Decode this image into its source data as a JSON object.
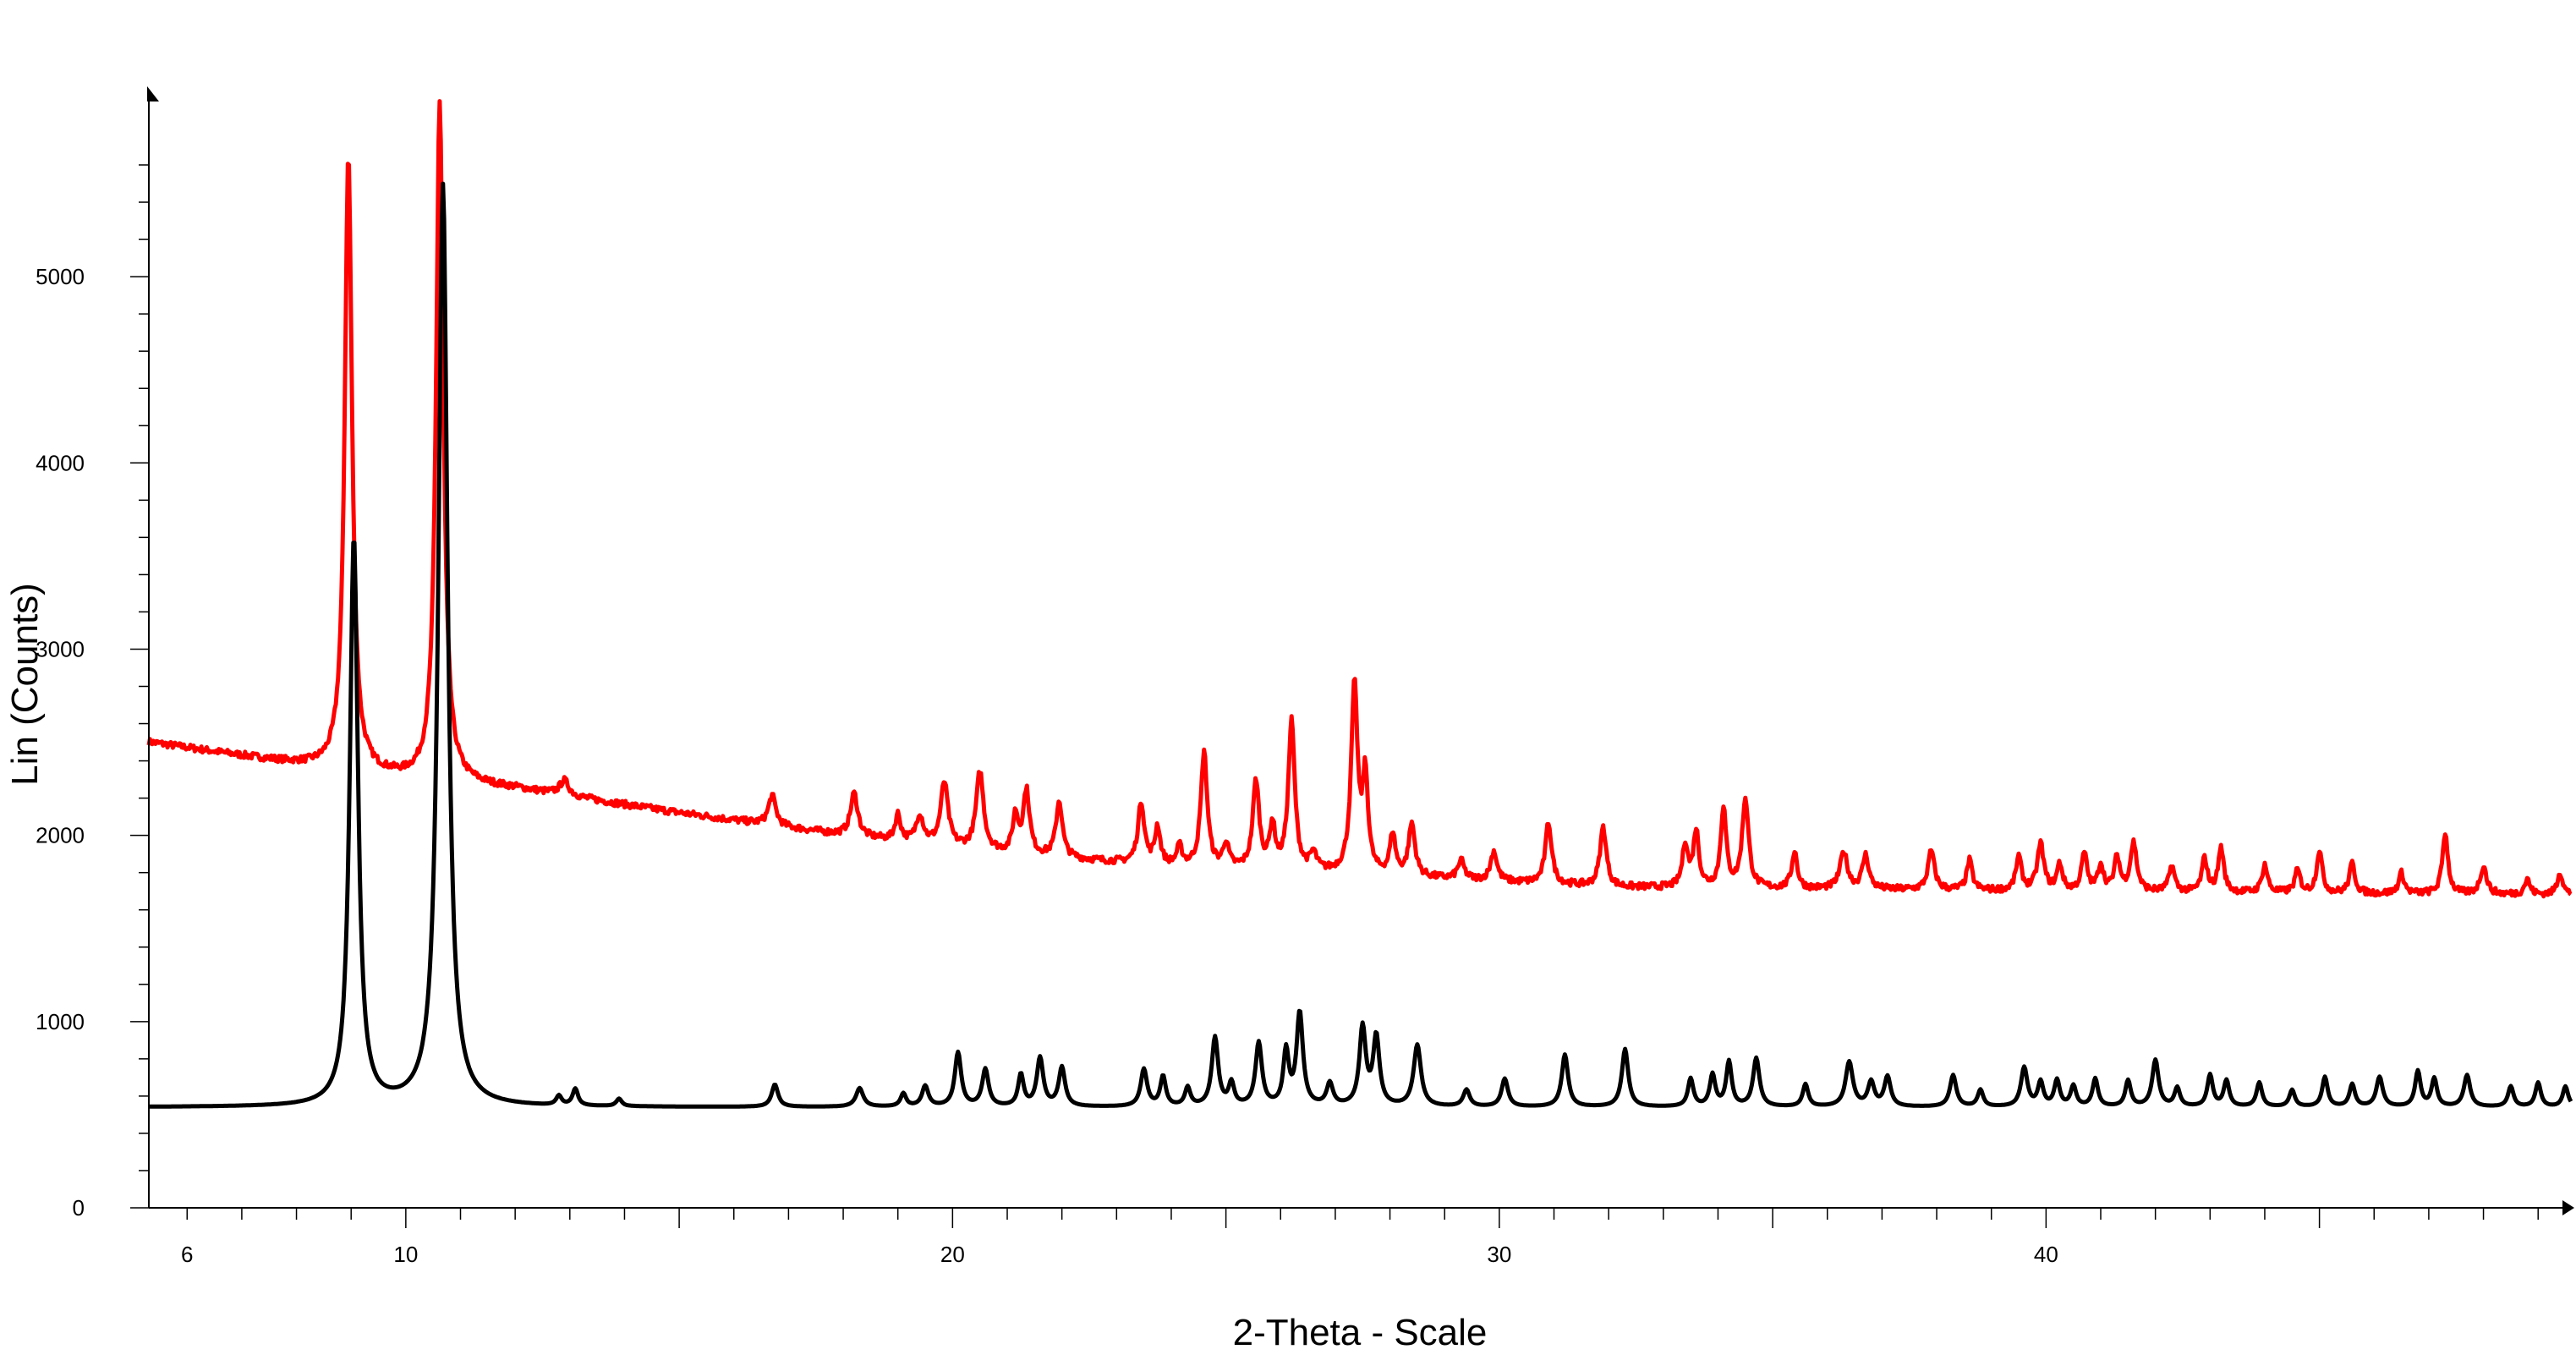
{
  "chart_data": {
    "type": "line",
    "xlabel": "2-Theta - Scale",
    "ylabel": "Lin (Counts)",
    "xlim": [
      5.3,
      49.6
    ],
    "ylim": [
      0,
      5600
    ],
    "x_ticks": [
      6,
      10,
      20,
      30,
      40
    ],
    "y_ticks": [
      0,
      1000,
      2000,
      3000,
      4000,
      5000
    ],
    "x_ticks_minor_step": 1,
    "y_ticks_minor_step": 200,
    "grid": false,
    "legend": "none",
    "series": [
      {
        "color": "#ff0000",
        "noise": 18,
        "baseline": [
          [
            5.3,
            2500
          ],
          [
            8.5,
            2360
          ],
          [
            10,
            2300
          ],
          [
            12,
            2250
          ],
          [
            15,
            2120
          ],
          [
            18,
            2000
          ],
          [
            21,
            1900
          ],
          [
            24,
            1830
          ],
          [
            28,
            1780
          ],
          [
            32,
            1720
          ],
          [
            36,
            1710
          ],
          [
            40,
            1700
          ],
          [
            44,
            1690
          ],
          [
            49.6,
            1680
          ]
        ],
        "peaks": [
          [
            8.95,
            3300,
            0.08
          ],
          [
            10.62,
            3650,
            0.08
          ],
          [
            12.9,
            80,
            0.1
          ],
          [
            16.7,
            160,
            0.08
          ],
          [
            18.2,
            230,
            0.08
          ],
          [
            19.0,
            140,
            0.06
          ],
          [
            19.4,
            150,
            0.08
          ],
          [
            19.85,
            340,
            0.08
          ],
          [
            20.5,
            420,
            0.08
          ],
          [
            21.15,
            200,
            0.06
          ],
          [
            21.35,
            340,
            0.07
          ],
          [
            21.95,
            300,
            0.07
          ],
          [
            23.45,
            330,
            0.07
          ],
          [
            23.75,
            200,
            0.06
          ],
          [
            24.15,
            100,
            0.06
          ],
          [
            24.6,
            620,
            0.07
          ],
          [
            25.0,
            130,
            0.06
          ],
          [
            25.55,
            470,
            0.07
          ],
          [
            25.85,
            230,
            0.06
          ],
          [
            26.2,
            800,
            0.07
          ],
          [
            26.6,
            90,
            0.07
          ],
          [
            27.35,
            1000,
            0.07
          ],
          [
            27.55,
            500,
            0.06
          ],
          [
            28.05,
            220,
            0.06
          ],
          [
            28.4,
            280,
            0.07
          ],
          [
            29.3,
            100,
            0.07
          ],
          [
            29.9,
            160,
            0.07
          ],
          [
            30.9,
            330,
            0.07
          ],
          [
            31.9,
            320,
            0.07
          ],
          [
            33.4,
            230,
            0.06
          ],
          [
            33.6,
            300,
            0.06
          ],
          [
            34.1,
            430,
            0.06
          ],
          [
            34.5,
            480,
            0.07
          ],
          [
            35.4,
            200,
            0.06
          ],
          [
            36.3,
            200,
            0.08
          ],
          [
            36.7,
            180,
            0.07
          ],
          [
            37.9,
            210,
            0.07
          ],
          [
            38.6,
            160,
            0.06
          ],
          [
            39.5,
            180,
            0.06
          ],
          [
            39.9,
            250,
            0.07
          ],
          [
            40.25,
            140,
            0.06
          ],
          [
            40.7,
            200,
            0.06
          ],
          [
            41.0,
            140,
            0.06
          ],
          [
            41.3,
            180,
            0.06
          ],
          [
            41.6,
            260,
            0.07
          ],
          [
            42.3,
            140,
            0.06
          ],
          [
            42.9,
            180,
            0.06
          ],
          [
            43.2,
            240,
            0.06
          ],
          [
            44.0,
            150,
            0.06
          ],
          [
            44.6,
            120,
            0.06
          ],
          [
            45.0,
            230,
            0.06
          ],
          [
            45.6,
            160,
            0.06
          ],
          [
            46.5,
            110,
            0.06
          ],
          [
            47.3,
            330,
            0.06
          ],
          [
            48.0,
            150,
            0.07
          ],
          [
            48.8,
            80,
            0.06
          ],
          [
            49.4,
            120,
            0.06
          ]
        ]
      },
      {
        "color": "#000000",
        "noise": 0,
        "baseline": [
          [
            5.3,
            540
          ],
          [
            49.6,
            540
          ]
        ],
        "peaks": [
          [
            9.05,
            3050,
            0.09
          ],
          [
            10.68,
            4950,
            0.1
          ],
          [
            12.8,
            50,
            0.06
          ],
          [
            13.1,
            90,
            0.06
          ],
          [
            13.9,
            40,
            0.06
          ],
          [
            16.75,
            120,
            0.07
          ],
          [
            18.3,
            100,
            0.08
          ],
          [
            19.1,
            70,
            0.06
          ],
          [
            19.5,
            110,
            0.07
          ],
          [
            20.1,
            290,
            0.07
          ],
          [
            20.6,
            200,
            0.07
          ],
          [
            21.25,
            170,
            0.06
          ],
          [
            21.6,
            260,
            0.07
          ],
          [
            22.0,
            210,
            0.07
          ],
          [
            23.5,
            200,
            0.07
          ],
          [
            23.85,
            160,
            0.06
          ],
          [
            24.3,
            100,
            0.06
          ],
          [
            24.8,
            370,
            0.07
          ],
          [
            25.1,
            120,
            0.06
          ],
          [
            25.6,
            340,
            0.07
          ],
          [
            26.1,
            290,
            0.06
          ],
          [
            26.35,
            500,
            0.07
          ],
          [
            26.9,
            120,
            0.07
          ],
          [
            27.5,
            420,
            0.07
          ],
          [
            27.75,
            370,
            0.07
          ],
          [
            28.5,
            330,
            0.08
          ],
          [
            29.4,
            90,
            0.07
          ],
          [
            30.1,
            150,
            0.07
          ],
          [
            31.2,
            280,
            0.07
          ],
          [
            32.3,
            310,
            0.07
          ],
          [
            33.5,
            150,
            0.06
          ],
          [
            33.9,
            170,
            0.06
          ],
          [
            34.2,
            240,
            0.06
          ],
          [
            34.7,
            260,
            0.07
          ],
          [
            35.6,
            120,
            0.06
          ],
          [
            36.4,
            240,
            0.08
          ],
          [
            36.8,
            130,
            0.07
          ],
          [
            37.1,
            160,
            0.07
          ],
          [
            38.3,
            170,
            0.07
          ],
          [
            38.8,
            90,
            0.06
          ],
          [
            39.6,
            210,
            0.07
          ],
          [
            39.9,
            130,
            0.06
          ],
          [
            40.2,
            140,
            0.06
          ],
          [
            40.5,
            110,
            0.06
          ],
          [
            40.9,
            150,
            0.06
          ],
          [
            41.5,
            140,
            0.06
          ],
          [
            42.0,
            250,
            0.07
          ],
          [
            42.4,
            100,
            0.06
          ],
          [
            43.0,
            170,
            0.06
          ],
          [
            43.3,
            140,
            0.06
          ],
          [
            43.9,
            130,
            0.06
          ],
          [
            44.5,
            90,
            0.06
          ],
          [
            45.1,
            160,
            0.06
          ],
          [
            45.6,
            120,
            0.06
          ],
          [
            46.1,
            160,
            0.07
          ],
          [
            46.8,
            190,
            0.06
          ],
          [
            47.1,
            150,
            0.06
          ],
          [
            47.7,
            170,
            0.07
          ],
          [
            48.5,
            110,
            0.06
          ],
          [
            49.0,
            130,
            0.06
          ],
          [
            49.5,
            110,
            0.06
          ]
        ]
      }
    ]
  }
}
